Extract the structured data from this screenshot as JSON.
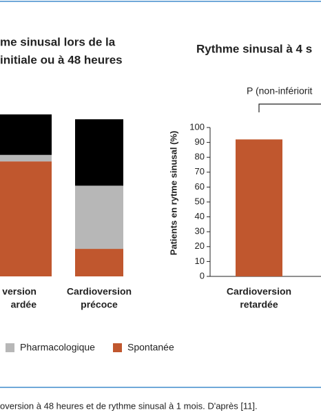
{
  "chart_data": [
    {
      "type": "stacked_bar",
      "title": [
        "me sinusal lors de la",
        "initiale ou à 48 heures"
      ],
      "categories": [
        [
          "version",
          "ardée"
        ],
        [
          "Cardioversion",
          "précoce"
        ]
      ],
      "ylim": [
        0,
        100
      ],
      "series": [
        {
          "name": "Spontanée",
          "color": "#c0572e",
          "values": [
            71,
            17
          ]
        },
        {
          "name": "Pharmacologique",
          "color": "#b7b7b7",
          "values": [
            4,
            39
          ]
        },
        {
          "color": "#000000",
          "values": [
            25,
            41
          ]
        }
      ]
    },
    {
      "type": "bar",
      "title": "Rythme sinusal à 4 s",
      "y_label": "Patients en rytme sinusal (%)",
      "categories": [
        [
          "Cardioversion",
          "retardée"
        ]
      ],
      "values": [
        92
      ],
      "color": "#c0572e",
      "ylim": [
        0,
        100
      ],
      "yticks": [
        0,
        10,
        20,
        30,
        40,
        50,
        60,
        70,
        80,
        90,
        100
      ],
      "annotation": "P (non-infériorit"
    }
  ],
  "caption": "oversion à 48 heures et de rythme sinusal à 1 mois. D'après [11]."
}
